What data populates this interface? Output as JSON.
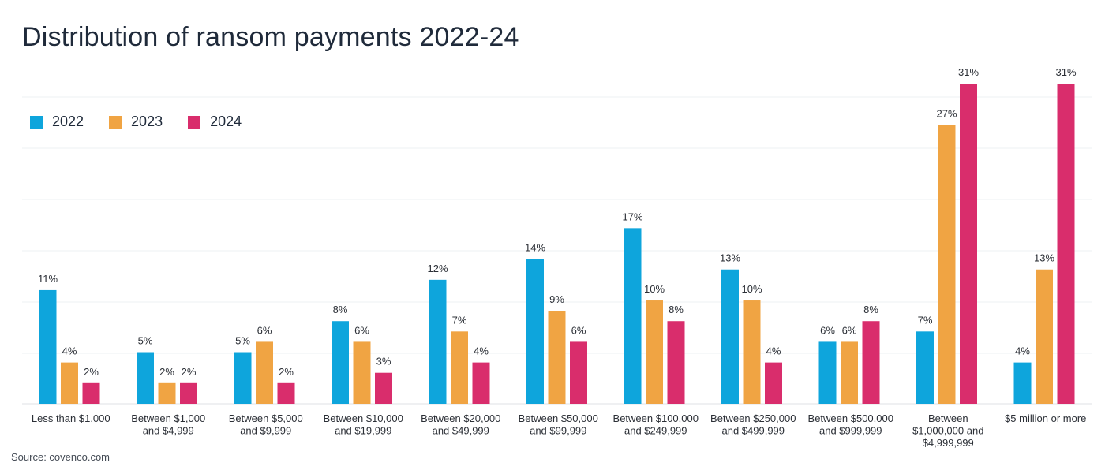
{
  "chart_data": {
    "type": "bar",
    "title": "Distribution of ransom payments 2022-24",
    "xlabel": "",
    "ylabel": "",
    "ylim": [
      0,
      31
    ],
    "grid": true,
    "legend_position": "top-left",
    "value_suffix": "%",
    "categories": [
      [
        "Less than $1,000"
      ],
      [
        "Between $1,000",
        "and $4,999"
      ],
      [
        "Between $5,000",
        "and $9,999"
      ],
      [
        "Between $10,000",
        "and $19,999"
      ],
      [
        "Between $20,000",
        "and $49,999"
      ],
      [
        "Between $50,000",
        "and $99,999"
      ],
      [
        "Between $100,000",
        "and $249,999"
      ],
      [
        "Between $250,000",
        "and $499,999"
      ],
      [
        "Between $500,000",
        "and $999,999"
      ],
      [
        "Between",
        "$1,000,000 and",
        "$4,999,999"
      ],
      [
        "$5 million or more"
      ]
    ],
    "series": [
      {
        "name": "2022",
        "color": "#0ea5dc",
        "values": [
          11,
          5,
          5,
          8,
          12,
          14,
          17,
          13,
          6,
          7,
          4
        ]
      },
      {
        "name": "2023",
        "color": "#f0a443",
        "values": [
          4,
          2,
          6,
          6,
          7,
          9,
          10,
          10,
          6,
          27,
          13
        ]
      },
      {
        "name": "2024",
        "color": "#d92d6c",
        "values": [
          2,
          2,
          2,
          3,
          4,
          6,
          8,
          4,
          8,
          31,
          31
        ]
      }
    ]
  },
  "source": "Source: covenco.com"
}
